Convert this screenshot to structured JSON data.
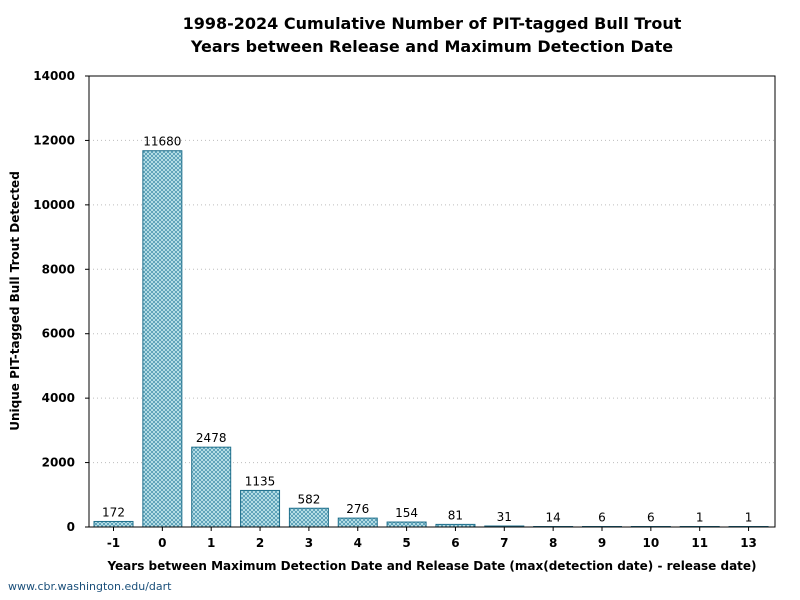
{
  "chart_data": {
    "type": "bar",
    "title": "1998-2024 Cumulative Number of PIT-tagged Bull Trout",
    "subtitle": "Years between Release and Maximum Detection Date",
    "xlabel": "Years between Maximum Detection Date and Release Date (max(detection date) - release date)",
    "ylabel": "Unique PIT-tagged Bull Trout Detected",
    "categories": [
      "-1",
      "0",
      "1",
      "2",
      "3",
      "4",
      "5",
      "6",
      "7",
      "8",
      "9",
      "10",
      "11",
      "13"
    ],
    "values": [
      172,
      11680,
      2478,
      1135,
      582,
      276,
      154,
      81,
      31,
      14,
      6,
      6,
      1,
      1
    ],
    "ylim": [
      0,
      14000
    ],
    "yticks": [
      0,
      2000,
      4000,
      6000,
      8000,
      10000,
      12000,
      14000
    ],
    "grid": "horizontal dotted",
    "bar_fill": "#bfe4ea",
    "bar_stroke": "#1f6f8b",
    "hatch_color": "#2b7fa0"
  },
  "footer": {
    "source": "www.cbr.washington.edu/dart"
  }
}
